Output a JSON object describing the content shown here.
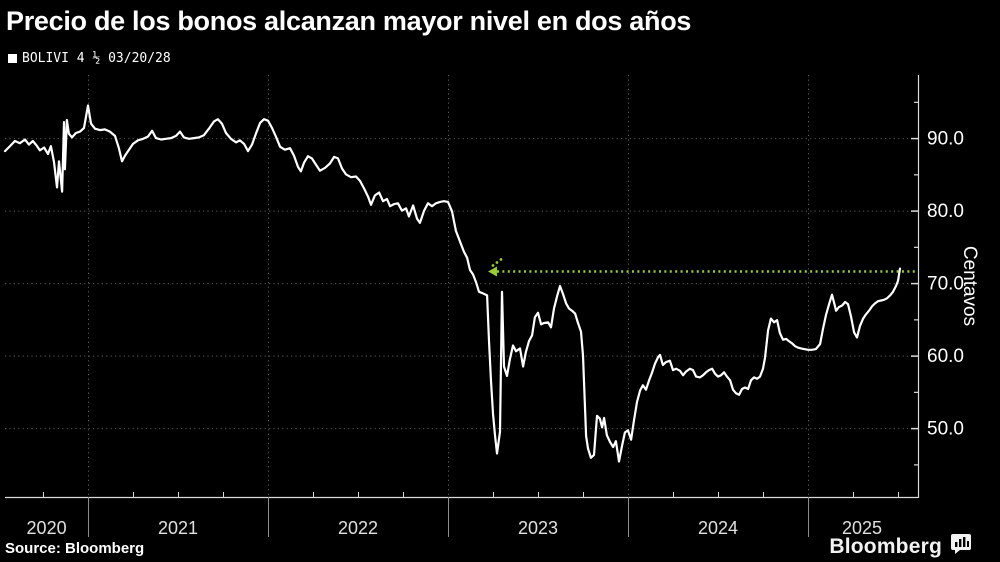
{
  "header": {
    "title": "Precio de los bonos alcanzan mayor nivel en dos años"
  },
  "legend": {
    "label": "BOLIVI 4 ½ 03/20/28",
    "swatch_color": "#ffffff"
  },
  "footer": {
    "source": "Source: Bloomberg",
    "logo": "Bloomberg"
  },
  "chart_data": {
    "type": "line",
    "title": "Precio de los bonos alcanzan mayor nivel en dos años",
    "xlabel": "",
    "ylabel": "Centavos",
    "x_domain": [
      2020.539,
      2025.611
    ],
    "y_domain": [
      40.5,
      98.7
    ],
    "y_ticks_major": [
      50,
      60,
      70,
      80,
      90
    ],
    "y_tick_labels": [
      "50.0",
      "60.0",
      "70.0",
      "80.0",
      "90.0"
    ],
    "y_ticks_minor": [
      45,
      55,
      65,
      75,
      85,
      95
    ],
    "x_ticks_years": [
      2021,
      2022,
      2023,
      2024,
      2025
    ],
    "x_ticks_minor": [
      2020.75,
      2021.25,
      2021.5,
      2021.75,
      2022.25,
      2022.5,
      2022.75,
      2023.25,
      2023.5,
      2023.75,
      2024.25,
      2024.5,
      2024.75,
      2025.25,
      2025.5
    ],
    "x_labels": [
      {
        "text": "2020",
        "t": 2020.77
      },
      {
        "text": "2021",
        "t": 2021.5
      },
      {
        "text": "2022",
        "t": 2022.5
      },
      {
        "text": "2023",
        "t": 2023.5
      },
      {
        "text": "2024",
        "t": 2024.5
      },
      {
        "text": "2025",
        "t": 2025.3
      }
    ],
    "grid": "dotted",
    "legend_position": "top-left",
    "colors": {
      "background": "#000000",
      "line": "#ffffff",
      "grid": "#9b9b9b",
      "axis": "#d9d9d9",
      "tick_text": "#ffffff",
      "year_text": "#e0e0e0",
      "reference": "#9acd32"
    },
    "reference_line": {
      "value": 71.6,
      "t_start": 2023.272,
      "t_end": 2025.611,
      "style": "dotted",
      "color": "#9acd32"
    },
    "series": [
      {
        "name": "BOLIVI 4 ½ 03/20/28",
        "color": "#ffffff",
        "points": [
          [
            2020.539,
            88.2
          ],
          [
            2020.567,
            88.9
          ],
          [
            2020.594,
            89.6
          ],
          [
            2020.622,
            89.3
          ],
          [
            2020.65,
            89.8
          ],
          [
            2020.672,
            89.1
          ],
          [
            2020.694,
            89.6
          ],
          [
            2020.717,
            88.9
          ],
          [
            2020.733,
            88.3
          ],
          [
            2020.756,
            88.7
          ],
          [
            2020.778,
            87.8
          ],
          [
            2020.794,
            88.9
          ],
          [
            2020.811,
            86.7
          ],
          [
            2020.828,
            83.2
          ],
          [
            2020.839,
            86.8
          ],
          [
            2020.856,
            82.6
          ],
          [
            2020.867,
            92.2
          ],
          [
            2020.872,
            85.7
          ],
          [
            2020.883,
            92.5
          ],
          [
            2020.894,
            90.6
          ],
          [
            2020.911,
            90.1
          ],
          [
            2020.933,
            90.7
          ],
          [
            2020.956,
            90.9
          ],
          [
            2020.978,
            91.4
          ],
          [
            2021.0,
            94.5
          ],
          [
            2021.017,
            92.0
          ],
          [
            2021.039,
            91.3
          ],
          [
            2021.067,
            91.1
          ],
          [
            2021.094,
            91.2
          ],
          [
            2021.122,
            90.9
          ],
          [
            2021.15,
            90.3
          ],
          [
            2021.172,
            88.6
          ],
          [
            2021.189,
            86.8
          ],
          [
            2021.206,
            87.6
          ],
          [
            2021.228,
            88.4
          ],
          [
            2021.25,
            89.2
          ],
          [
            2021.278,
            89.7
          ],
          [
            2021.306,
            89.9
          ],
          [
            2021.333,
            90.2
          ],
          [
            2021.356,
            91.0
          ],
          [
            2021.378,
            90.0
          ],
          [
            2021.406,
            89.8
          ],
          [
            2021.433,
            89.9
          ],
          [
            2021.461,
            90.0
          ],
          [
            2021.489,
            90.3
          ],
          [
            2021.511,
            90.9
          ],
          [
            2021.533,
            90.1
          ],
          [
            2021.561,
            89.9
          ],
          [
            2021.589,
            90.0
          ],
          [
            2021.617,
            90.1
          ],
          [
            2021.644,
            90.4
          ],
          [
            2021.672,
            91.3
          ],
          [
            2021.7,
            92.3
          ],
          [
            2021.722,
            92.6
          ],
          [
            2021.744,
            92.0
          ],
          [
            2021.767,
            90.7
          ],
          [
            2021.794,
            89.9
          ],
          [
            2021.822,
            89.4
          ],
          [
            2021.844,
            89.7
          ],
          [
            2021.867,
            89.2
          ],
          [
            2021.889,
            88.2
          ],
          [
            2021.911,
            89.1
          ],
          [
            2021.933,
            90.6
          ],
          [
            2021.956,
            92.1
          ],
          [
            2021.978,
            92.6
          ],
          [
            2022.0,
            92.4
          ],
          [
            2022.022,
            91.4
          ],
          [
            2022.044,
            90.2
          ],
          [
            2022.067,
            88.8
          ],
          [
            2022.094,
            88.4
          ],
          [
            2022.122,
            88.6
          ],
          [
            2022.144,
            87.6
          ],
          [
            2022.167,
            86.0
          ],
          [
            2022.183,
            85.4
          ],
          [
            2022.2,
            86.6
          ],
          [
            2022.222,
            87.5
          ],
          [
            2022.244,
            87.2
          ],
          [
            2022.267,
            86.3
          ],
          [
            2022.289,
            85.5
          ],
          [
            2022.317,
            85.9
          ],
          [
            2022.344,
            86.5
          ],
          [
            2022.367,
            87.4
          ],
          [
            2022.389,
            87.2
          ],
          [
            2022.411,
            85.8
          ],
          [
            2022.433,
            85.0
          ],
          [
            2022.461,
            84.6
          ],
          [
            2022.489,
            84.7
          ],
          [
            2022.511,
            84.1
          ],
          [
            2022.533,
            83.1
          ],
          [
            2022.556,
            81.9
          ],
          [
            2022.572,
            80.8
          ],
          [
            2022.594,
            82.1
          ],
          [
            2022.617,
            82.5
          ],
          [
            2022.639,
            81.3
          ],
          [
            2022.661,
            81.6
          ],
          [
            2022.678,
            80.6
          ],
          [
            2022.7,
            80.9
          ],
          [
            2022.722,
            81.0
          ],
          [
            2022.744,
            80.0
          ],
          [
            2022.767,
            80.3
          ],
          [
            2022.783,
            79.2
          ],
          [
            2022.806,
            80.7
          ],
          [
            2022.828,
            78.9
          ],
          [
            2022.844,
            78.3
          ],
          [
            2022.867,
            80.0
          ],
          [
            2022.889,
            81.0
          ],
          [
            2022.911,
            80.6
          ],
          [
            2022.933,
            81.0
          ],
          [
            2022.956,
            81.2
          ],
          [
            2022.978,
            81.3
          ],
          [
            2023.0,
            81.2
          ],
          [
            2023.022,
            79.9
          ],
          [
            2023.044,
            77.2
          ],
          [
            2023.067,
            75.7
          ],
          [
            2023.089,
            74.3
          ],
          [
            2023.106,
            73.5
          ],
          [
            2023.122,
            71.8
          ],
          [
            2023.139,
            71.2
          ],
          [
            2023.156,
            70.1
          ],
          [
            2023.172,
            68.8
          ],
          [
            2023.194,
            68.6
          ],
          [
            2023.217,
            68.3
          ],
          [
            2023.228,
            62.0
          ],
          [
            2023.239,
            56.5
          ],
          [
            2023.25,
            52.0
          ],
          [
            2023.261,
            49.0
          ],
          [
            2023.272,
            46.5
          ],
          [
            2023.289,
            49.5
          ],
          [
            2023.3,
            68.8
          ],
          [
            2023.311,
            58.5
          ],
          [
            2023.328,
            57.2
          ],
          [
            2023.344,
            59.5
          ],
          [
            2023.361,
            61.4
          ],
          [
            2023.378,
            60.6
          ],
          [
            2023.4,
            61.0
          ],
          [
            2023.417,
            58.5
          ],
          [
            2023.433,
            60.5
          ],
          [
            2023.45,
            62.0
          ],
          [
            2023.467,
            62.8
          ],
          [
            2023.483,
            65.3
          ],
          [
            2023.5,
            65.9
          ],
          [
            2023.517,
            64.3
          ],
          [
            2023.533,
            64.5
          ],
          [
            2023.556,
            64.6
          ],
          [
            2023.572,
            63.9
          ],
          [
            2023.589,
            66.5
          ],
          [
            2023.606,
            68.2
          ],
          [
            2023.622,
            69.6
          ],
          [
            2023.639,
            68.5
          ],
          [
            2023.656,
            67.2
          ],
          [
            2023.672,
            66.5
          ],
          [
            2023.689,
            66.2
          ],
          [
            2023.706,
            65.8
          ],
          [
            2023.722,
            64.5
          ],
          [
            2023.739,
            63.3
          ],
          [
            2023.75,
            60.0
          ],
          [
            2023.767,
            48.9
          ],
          [
            2023.778,
            47.2
          ],
          [
            2023.794,
            45.9
          ],
          [
            2023.811,
            46.3
          ],
          [
            2023.828,
            51.7
          ],
          [
            2023.844,
            51.3
          ],
          [
            2023.856,
            50.1
          ],
          [
            2023.867,
            51.4
          ],
          [
            2023.883,
            49.0
          ],
          [
            2023.9,
            48.1
          ],
          [
            2023.917,
            47.4
          ],
          [
            2023.933,
            48.2
          ],
          [
            2023.95,
            45.4
          ],
          [
            2023.967,
            47.6
          ],
          [
            2023.983,
            49.4
          ],
          [
            2024.0,
            49.7
          ],
          [
            2024.017,
            48.4
          ],
          [
            2024.033,
            51.0
          ],
          [
            2024.05,
            53.6
          ],
          [
            2024.067,
            55.2
          ],
          [
            2024.083,
            55.9
          ],
          [
            2024.1,
            55.3
          ],
          [
            2024.117,
            56.6
          ],
          [
            2024.133,
            57.6
          ],
          [
            2024.15,
            58.9
          ],
          [
            2024.167,
            59.8
          ],
          [
            2024.178,
            60.1
          ],
          [
            2024.194,
            58.7
          ],
          [
            2024.211,
            59.1
          ],
          [
            2024.233,
            59.3
          ],
          [
            2024.25,
            58.0
          ],
          [
            2024.267,
            58.2
          ],
          [
            2024.289,
            57.9
          ],
          [
            2024.306,
            57.3
          ],
          [
            2024.322,
            57.8
          ],
          [
            2024.344,
            58.2
          ],
          [
            2024.361,
            58.0
          ],
          [
            2024.378,
            57.1
          ],
          [
            2024.4,
            57.0
          ],
          [
            2024.417,
            57.3
          ],
          [
            2024.433,
            57.7
          ],
          [
            2024.45,
            58.0
          ],
          [
            2024.467,
            58.2
          ],
          [
            2024.483,
            57.5
          ],
          [
            2024.5,
            57.1
          ],
          [
            2024.517,
            57.3
          ],
          [
            2024.533,
            57.7
          ],
          [
            2024.55,
            57.1
          ],
          [
            2024.567,
            56.6
          ],
          [
            2024.583,
            55.3
          ],
          [
            2024.6,
            54.8
          ],
          [
            2024.617,
            54.6
          ],
          [
            2024.633,
            55.4
          ],
          [
            2024.65,
            55.6
          ],
          [
            2024.667,
            55.4
          ],
          [
            2024.683,
            56.6
          ],
          [
            2024.7,
            57.0
          ],
          [
            2024.717,
            56.8
          ],
          [
            2024.733,
            57.1
          ],
          [
            2024.75,
            58.2
          ],
          [
            2024.761,
            59.7
          ],
          [
            2024.778,
            63.5
          ],
          [
            2024.794,
            65.1
          ],
          [
            2024.811,
            64.6
          ],
          [
            2024.828,
            64.9
          ],
          [
            2024.844,
            63.1
          ],
          [
            2024.861,
            62.2
          ],
          [
            2024.878,
            62.3
          ],
          [
            2024.894,
            62.0
          ],
          [
            2024.911,
            61.7
          ],
          [
            2024.928,
            61.3
          ],
          [
            2024.944,
            61.1
          ],
          [
            2024.961,
            61.0
          ],
          [
            2024.978,
            60.9
          ],
          [
            2025.0,
            60.8
          ],
          [
            2025.022,
            60.8
          ],
          [
            2025.044,
            60.9
          ],
          [
            2025.067,
            61.6
          ],
          [
            2025.083,
            63.7
          ],
          [
            2025.1,
            65.6
          ],
          [
            2025.117,
            67.1
          ],
          [
            2025.133,
            68.4
          ],
          [
            2025.144,
            67.4
          ],
          [
            2025.156,
            66.2
          ],
          [
            2025.172,
            66.7
          ],
          [
            2025.189,
            66.9
          ],
          [
            2025.206,
            67.4
          ],
          [
            2025.222,
            67.1
          ],
          [
            2025.239,
            65.4
          ],
          [
            2025.256,
            63.2
          ],
          [
            2025.272,
            62.5
          ],
          [
            2025.289,
            64.1
          ],
          [
            2025.306,
            65.1
          ],
          [
            2025.322,
            65.7
          ],
          [
            2025.339,
            66.2
          ],
          [
            2025.356,
            66.8
          ],
          [
            2025.372,
            67.2
          ],
          [
            2025.389,
            67.5
          ],
          [
            2025.406,
            67.6
          ],
          [
            2025.422,
            67.7
          ],
          [
            2025.439,
            67.9
          ],
          [
            2025.456,
            68.3
          ],
          [
            2025.472,
            68.8
          ],
          [
            2025.489,
            69.6
          ],
          [
            2025.5,
            70.3
          ],
          [
            2025.511,
            72.0
          ]
        ]
      }
    ]
  }
}
